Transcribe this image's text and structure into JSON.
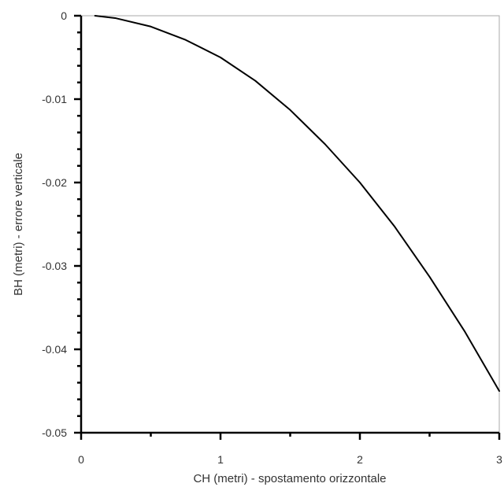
{
  "chart_data": {
    "type": "line",
    "title": "",
    "xlabel": "CH (metri) - spostamento orizzontale",
    "ylabel": "BH (metri) - errore verticale",
    "xlim": [
      0,
      3
    ],
    "ylim": [
      -0.05,
      0
    ],
    "x_ticks": [
      0,
      1,
      2,
      3
    ],
    "x_tick_labels": [
      "0",
      "1",
      "2",
      "3"
    ],
    "y_ticks": [
      0,
      -0.01,
      -0.02,
      -0.03,
      -0.04,
      -0.05
    ],
    "y_tick_labels": [
      "0",
      "-0.01",
      "-0.02",
      "-0.03",
      "-0.04",
      "-0.05"
    ],
    "grid": false,
    "series": [
      {
        "x": [
          0.1,
          0.25,
          0.5,
          0.75,
          1.0,
          1.25,
          1.5,
          1.75,
          2.0,
          2.25,
          2.5,
          2.75,
          3.0
        ],
        "y": [
          0,
          -0.0003,
          -0.0013,
          -0.0029,
          -0.005,
          -0.0078,
          -0.0113,
          -0.0154,
          -0.02,
          -0.0253,
          -0.0313,
          -0.0378,
          -0.045
        ],
        "color": "#000000"
      }
    ]
  }
}
